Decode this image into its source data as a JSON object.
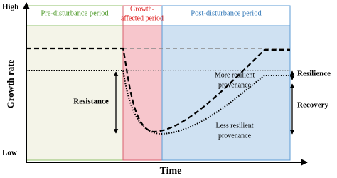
{
  "axes": {
    "y_high": "High",
    "y_low": "Low",
    "y_label": "Growth rate",
    "x_label": "Time"
  },
  "periods": [
    {
      "label": "Pre-disturbance period"
    },
    {
      "label_lines": [
        "Growth-",
        "affected period"
      ]
    },
    {
      "label": "Post-disturbance period"
    }
  ],
  "annotations": {
    "more_resilient": [
      "More resilient",
      "provenance"
    ],
    "less_resilient": [
      "Less resilient",
      "provenance"
    ],
    "resistance": "Resistance",
    "resilience": "Resilience",
    "recovery": "Recovery"
  }
}
